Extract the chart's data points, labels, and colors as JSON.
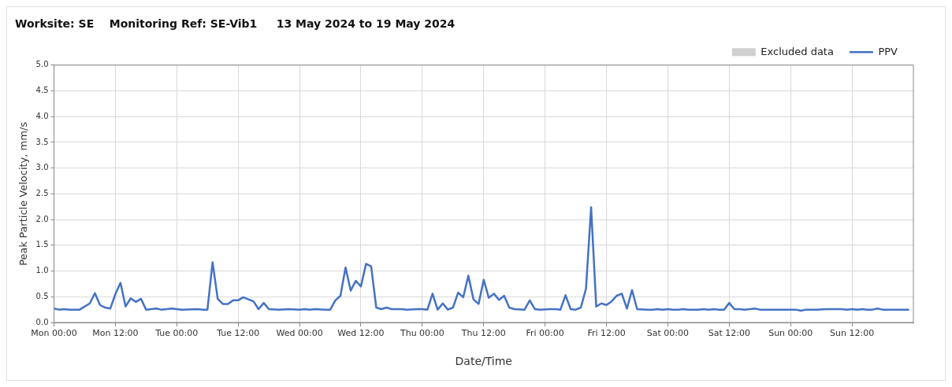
{
  "chart_data": {
    "type": "line",
    "title": "Worksite: SE    Monitoring Ref: SE-Vib1     13 May 2024 to 19 May 2024",
    "xlabel": "Date/Time",
    "ylabel": "Peak Particle Velocity, mm/s",
    "xlim": [
      "2024-05-13T00:00",
      "2024-05-20T00:00"
    ],
    "xticks": [
      {
        "value": "2024-05-13T00:00",
        "label": "Mon 00:00"
      },
      {
        "value": "2024-05-13T12:00",
        "label": "Mon 12:00"
      },
      {
        "value": "2024-05-14T00:00",
        "label": "Tue 00:00"
      },
      {
        "value": "2024-05-14T12:00",
        "label": "Tue 12:00"
      },
      {
        "value": "2024-05-15T00:00",
        "label": "Wed 00:00"
      },
      {
        "value": "2024-05-15T12:00",
        "label": "Wed 12:00"
      },
      {
        "value": "2024-05-16T00:00",
        "label": "Thu 00:00"
      },
      {
        "value": "2024-05-16T12:00",
        "label": "Thu 12:00"
      },
      {
        "value": "2024-05-17T00:00",
        "label": "Fri 00:00"
      },
      {
        "value": "2024-05-17T12:00",
        "label": "Fri 12:00"
      },
      {
        "value": "2024-05-18T00:00",
        "label": "Sat 00:00"
      },
      {
        "value": "2024-05-18T12:00",
        "label": "Sat 12:00"
      },
      {
        "value": "2024-05-19T00:00",
        "label": "Sun 00:00"
      },
      {
        "value": "2024-05-19T12:00",
        "label": "Sun 12:00"
      }
    ],
    "ylim": [
      0,
      5
    ],
    "yticks": [
      {
        "value": 0,
        "label": "0.0"
      },
      {
        "value": 0.5,
        "label": "0.5"
      },
      {
        "value": 1,
        "label": "1.0"
      },
      {
        "value": 1.5,
        "label": "1.5"
      },
      {
        "value": 2,
        "label": "2.0"
      },
      {
        "value": 2.5,
        "label": "2.5"
      },
      {
        "value": 3,
        "label": "3.0"
      },
      {
        "value": 3.5,
        "label": "3.5"
      },
      {
        "value": 4,
        "label": "4.0"
      },
      {
        "value": 4.5,
        "label": "4.5"
      },
      {
        "value": 5,
        "label": "5.0"
      }
    ],
    "grid": true,
    "legend": "top right",
    "marker": "none",
    "line_style": "solid",
    "series": [
      {
        "name": "Excluded data",
        "type": "bar",
        "color": "#d0d0d0"
      },
      {
        "name": "PPV",
        "color": "#4472c4",
        "x": [
          "2024-05-13T00:00",
          "2024-05-13T01:00",
          "2024-05-13T02:00",
          "2024-05-13T03:00",
          "2024-05-13T05:00",
          "2024-05-13T07:00",
          "2024-05-13T08:00",
          "2024-05-13T09:00",
          "2024-05-13T10:00",
          "2024-05-13T11:00",
          "2024-05-13T12:00",
          "2024-05-13T13:00",
          "2024-05-13T14:00",
          "2024-05-13T15:00",
          "2024-05-13T16:00",
          "2024-05-13T17:00",
          "2024-05-13T18:00",
          "2024-05-13T20:00",
          "2024-05-13T21:00",
          "2024-05-13T23:00",
          "2024-05-14T01:00",
          "2024-05-14T04:00",
          "2024-05-14T05:00",
          "2024-05-14T06:00",
          "2024-05-14T07:00",
          "2024-05-14T08:00",
          "2024-05-14T09:00",
          "2024-05-14T10:00",
          "2024-05-14T11:00",
          "2024-05-14T12:00",
          "2024-05-14T13:00",
          "2024-05-14T14:00",
          "2024-05-14T15:00",
          "2024-05-14T16:00",
          "2024-05-14T17:00",
          "2024-05-14T18:00",
          "2024-05-14T20:00",
          "2024-05-14T22:00",
          "2024-05-15T00:00",
          "2024-05-15T01:00",
          "2024-05-15T02:00",
          "2024-05-15T03:00",
          "2024-05-15T05:00",
          "2024-05-15T06:00",
          "2024-05-15T07:00",
          "2024-05-15T08:00",
          "2024-05-15T09:00",
          "2024-05-15T10:00",
          "2024-05-15T11:00",
          "2024-05-15T12:00",
          "2024-05-15T13:00",
          "2024-05-15T14:00",
          "2024-05-15T15:00",
          "2024-05-15T16:00",
          "2024-05-15T17:00",
          "2024-05-15T18:00",
          "2024-05-15T20:00",
          "2024-05-15T21:00",
          "2024-05-15T23:00",
          "2024-05-16T00:00",
          "2024-05-16T01:00",
          "2024-05-16T02:00",
          "2024-05-16T03:00",
          "2024-05-16T04:00",
          "2024-05-16T05:00",
          "2024-05-16T06:00",
          "2024-05-16T07:00",
          "2024-05-16T08:00",
          "2024-05-16T09:00",
          "2024-05-16T10:00",
          "2024-05-16T11:00",
          "2024-05-16T12:00",
          "2024-05-16T13:00",
          "2024-05-16T14:00",
          "2024-05-16T15:00",
          "2024-05-16T16:00",
          "2024-05-16T17:00",
          "2024-05-16T18:00",
          "2024-05-16T20:00",
          "2024-05-16T21:00",
          "2024-05-16T22:00",
          "2024-05-16T23:00",
          "2024-05-17T01:00",
          "2024-05-17T02:00",
          "2024-05-17T03:00",
          "2024-05-17T04:00",
          "2024-05-17T05:00",
          "2024-05-17T06:00",
          "2024-05-17T07:00",
          "2024-05-17T08:00",
          "2024-05-17T09:00",
          "2024-05-17T10:00",
          "2024-05-17T11:00",
          "2024-05-17T12:00",
          "2024-05-17T13:00",
          "2024-05-17T14:00",
          "2024-05-17T15:00",
          "2024-05-17T16:00",
          "2024-05-17T17:00",
          "2024-05-17T18:00",
          "2024-05-17T20:00",
          "2024-05-17T21:00",
          "2024-05-17T22:00",
          "2024-05-17T23:00",
          "2024-05-18T00:00",
          "2024-05-18T01:00",
          "2024-05-18T02:00",
          "2024-05-18T03:00",
          "2024-05-18T04:00",
          "2024-05-18T06:00",
          "2024-05-18T07:00",
          "2024-05-18T08:00",
          "2024-05-18T09:00",
          "2024-05-18T10:00",
          "2024-05-18T11:00",
          "2024-05-18T12:00",
          "2024-05-18T13:00",
          "2024-05-18T14:00",
          "2024-05-18T15:00",
          "2024-05-18T17:00",
          "2024-05-18T18:00",
          "2024-05-18T20:00",
          "2024-05-18T22:00",
          "2024-05-19T01:00",
          "2024-05-19T02:00",
          "2024-05-19T03:00",
          "2024-05-19T05:00",
          "2024-05-19T07:00",
          "2024-05-19T10:00",
          "2024-05-19T11:00",
          "2024-05-19T12:00",
          "2024-05-19T13:00",
          "2024-05-19T14:00",
          "2024-05-19T15:00",
          "2024-05-19T16:00",
          "2024-05-19T17:00",
          "2024-05-19T18:00",
          "2024-05-19T20:00",
          "2024-05-19T23:00"
        ],
        "values": [
          0.27,
          0.25,
          0.26,
          0.25,
          0.25,
          0.37,
          0.57,
          0.34,
          0.29,
          0.27,
          0.55,
          0.77,
          0.31,
          0.47,
          0.4,
          0.46,
          0.25,
          0.27,
          0.25,
          0.27,
          0.25,
          0.26,
          0.25,
          0.25,
          1.17,
          0.46,
          0.36,
          0.36,
          0.43,
          0.43,
          0.49,
          0.45,
          0.41,
          0.26,
          0.38,
          0.26,
          0.25,
          0.26,
          0.25,
          0.26,
          0.25,
          0.26,
          0.25,
          0.25,
          0.43,
          0.52,
          1.07,
          0.62,
          0.81,
          0.7,
          1.14,
          1.09,
          0.29,
          0.26,
          0.29,
          0.26,
          0.26,
          0.25,
          0.26,
          0.26,
          0.25,
          0.56,
          0.25,
          0.37,
          0.25,
          0.29,
          0.58,
          0.49,
          0.91,
          0.45,
          0.36,
          0.83,
          0.48,
          0.56,
          0.44,
          0.52,
          0.29,
          0.26,
          0.25,
          0.43,
          0.26,
          0.25,
          0.26,
          0.26,
          0.25,
          0.53,
          0.26,
          0.25,
          0.29,
          0.66,
          2.24,
          0.31,
          0.37,
          0.34,
          0.41,
          0.52,
          0.56,
          0.27,
          0.63,
          0.26,
          0.25,
          0.25,
          0.26,
          0.25,
          0.26,
          0.25,
          0.25,
          0.26,
          0.25,
          0.25,
          0.26,
          0.25,
          0.26,
          0.25,
          0.25,
          0.38,
          0.26,
          0.26,
          0.25,
          0.27,
          0.25,
          0.25,
          0.25,
          0.25,
          0.23,
          0.25,
          0.25,
          0.26,
          0.26,
          0.25,
          0.26,
          0.25,
          0.26,
          0.25,
          0.25,
          0.27,
          0.25,
          0.25,
          0.25
        ]
      }
    ]
  }
}
